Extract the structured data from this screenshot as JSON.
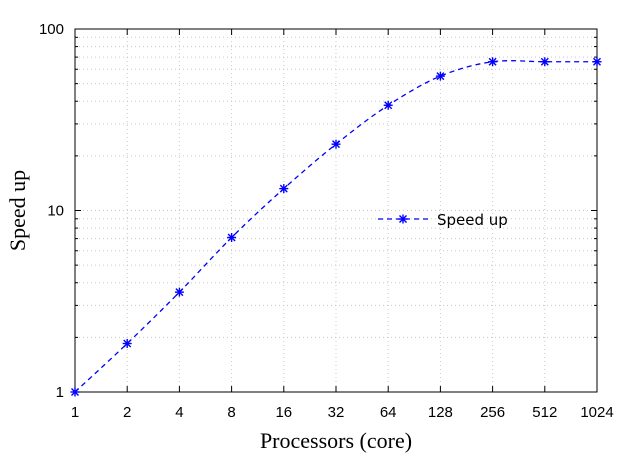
{
  "chart_data": {
    "type": "line",
    "title": "",
    "xlabel": "Processors (core)",
    "ylabel": "Speed up",
    "x_scale": "log2",
    "y_scale": "log10",
    "xlim": [
      1,
      1024
    ],
    "ylim": [
      1,
      100
    ],
    "x_ticks": [
      "1",
      "2",
      "4",
      "8",
      "16",
      "32",
      "64",
      "128",
      "256",
      "512",
      "1024"
    ],
    "y_ticks": [
      "1",
      "10",
      "100"
    ],
    "grid": true,
    "legend_position": "center-right",
    "series": [
      {
        "name": "Speed up",
        "color": "#0000ff",
        "line_style": "dashed",
        "marker": "asterisk",
        "x": [
          1,
          2,
          4,
          8,
          16,
          32,
          64,
          128,
          256,
          512,
          1024
        ],
        "y": [
          1.0,
          1.85,
          3.55,
          7.1,
          13.2,
          23.2,
          38.0,
          55.0,
          66.0,
          66.0,
          66.0
        ]
      }
    ]
  }
}
